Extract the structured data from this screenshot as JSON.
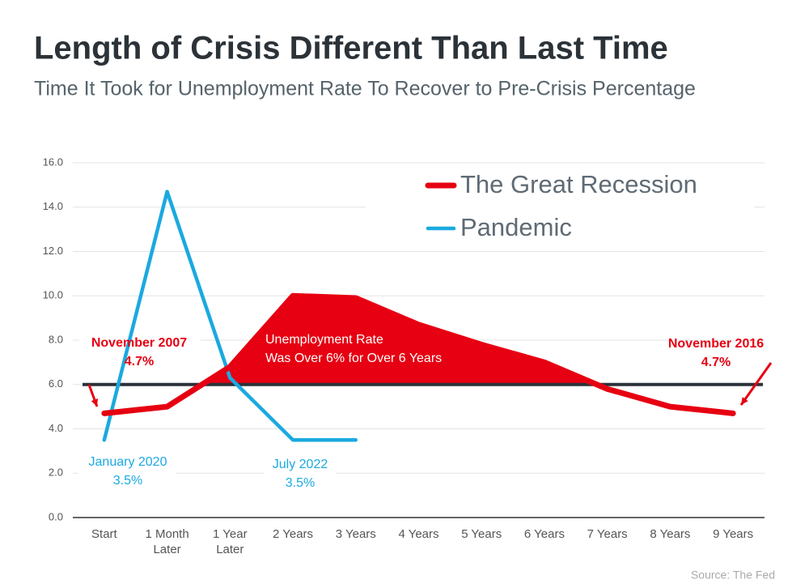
{
  "chart_data": {
    "type": "line",
    "title": "Length of Crisis Different Than Last Time",
    "subtitle": "Time It Took for Unemployment Rate To Recover to Pre-Crisis Percentage",
    "categories": [
      "Start",
      "1 Month Later",
      "1 Year Later",
      "2 Years",
      "3 Years",
      "4 Years",
      "5 Years",
      "6 Years",
      "7 Years",
      "8 Years",
      "9 Years"
    ],
    "series": [
      {
        "name": "The Great Recession",
        "color": "#e60012",
        "values": [
          4.7,
          5.0,
          6.8,
          10.0,
          9.9,
          8.7,
          7.8,
          7.0,
          5.8,
          5.0,
          4.7
        ]
      },
      {
        "name": "Pandemic",
        "color": "#1ba9e0",
        "values": [
          3.5,
          14.7,
          6.3,
          3.5,
          3.5,
          null,
          null,
          null,
          null,
          null,
          null
        ]
      }
    ],
    "threshold": {
      "value": 6,
      "color": "#2b3238"
    },
    "ylim": [
      0,
      16
    ],
    "yticks": [
      {
        "value": 0,
        "label": "0.0"
      },
      {
        "value": 2,
        "label": "2.0"
      },
      {
        "value": 4,
        "label": "4.0"
      },
      {
        "value": 6,
        "label": "6.0"
      },
      {
        "value": 8,
        "label": "8.0"
      },
      {
        "value": 10,
        "label": "10.0"
      },
      {
        "value": 12,
        "label": "12.0"
      },
      {
        "value": 14,
        "label": "14.0"
      },
      {
        "value": 16,
        "label": "16.0"
      }
    ],
    "grid": true,
    "legend": "top-right",
    "annotations": [
      {
        "lines": [
          "November 2007",
          "4.7%"
        ],
        "color": "#e60012"
      },
      {
        "lines": [
          "January 2020",
          "3.5%"
        ],
        "color": "#1ba9e0"
      },
      {
        "lines": [
          "July 2022",
          "3.5%"
        ],
        "color": "#1ba9e0"
      },
      {
        "lines": [
          "November 2016",
          "4.7%"
        ],
        "color": "#e60012"
      },
      {
        "lines": [
          "Unemployment Rate",
          "Was Over 6% for Over 6 Years"
        ],
        "color": "#ffffff"
      }
    ],
    "source": "Source: The Fed"
  }
}
